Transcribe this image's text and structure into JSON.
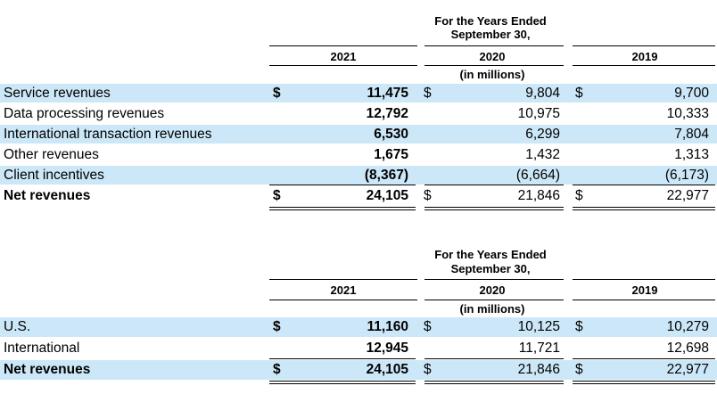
{
  "table1": {
    "period_line1": "For the Years Ended",
    "period_line2": "September 30,",
    "years": [
      "2021",
      "2020",
      "2019"
    ],
    "unit": "(in millions)",
    "rows": [
      {
        "label": "Service revenues",
        "v2021": "11,475",
        "v2020": "9,804",
        "v2019": "9,700",
        "currency": "$"
      },
      {
        "label": "Data processing revenues",
        "v2021": "12,792",
        "v2020": "10,975",
        "v2019": "10,333"
      },
      {
        "label": "International transaction revenues",
        "v2021": "6,530",
        "v2020": "6,299",
        "v2019": "7,804"
      },
      {
        "label": "Other revenues",
        "v2021": "1,675",
        "v2020": "1,432",
        "v2019": "1,313"
      },
      {
        "label": "Client incentives",
        "v2021": "(8,367)",
        "v2020": "(6,664)",
        "v2019": "(6,173)"
      },
      {
        "label": "Net revenues",
        "v2021": "24,105",
        "v2020": "21,846",
        "v2019": "22,977",
        "currency": "$"
      }
    ]
  },
  "table2": {
    "period_line1": "For the Years Ended",
    "period_line2": "September 30,",
    "years": [
      "2021",
      "2020",
      "2019"
    ],
    "unit": "(in millions)",
    "rows": [
      {
        "label": "U.S.",
        "v2021": "11,160",
        "v2020": "10,125",
        "v2019": "10,279",
        "currency": "$"
      },
      {
        "label": "International",
        "v2021": "12,945",
        "v2020": "11,721",
        "v2019": "12,698"
      },
      {
        "label": "Net revenues",
        "v2021": "24,105",
        "v2020": "21,846",
        "v2019": "22,977",
        "currency": "$"
      }
    ]
  },
  "colors": {
    "row_shade": "#cce8f8"
  }
}
